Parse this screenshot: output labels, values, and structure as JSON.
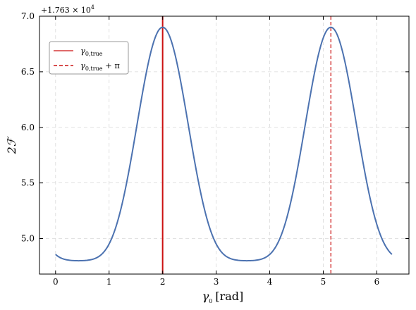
{
  "chart_data": {
    "type": "line",
    "offset_text": "+1.763 × 10",
    "offset_exp": "4",
    "xlabel_symbol": "γ",
    "xlabel_sub": "0",
    "xlabel_unit": "[rad]",
    "ylabel": "2ℱ",
    "xlim": [
      -0.3,
      6.6
    ],
    "ylim": [
      4.68,
      7.0
    ],
    "xticks": [
      0,
      1,
      2,
      3,
      4,
      5,
      6
    ],
    "yticks": [
      5.0,
      5.5,
      6.0,
      6.5,
      7.0
    ],
    "grid": true,
    "legend_position": "upper-left",
    "series": [
      {
        "model": {
          "baseline": 4.8,
          "peak_amplitude": 2.1,
          "period": 3.14159,
          "phase": 2.0,
          "ripple_amplitude": 0.035
        },
        "x_range": [
          0.0,
          6.283
        ],
        "color": "#4c72b0"
      }
    ],
    "vertical_lines": [
      {
        "x": 2.0,
        "label_symbol": "γ",
        "label_sub": "0,true",
        "label_suffix": "",
        "style": "solid",
        "color": "#cc1111"
      },
      {
        "x": 5.1416,
        "label_symbol": "γ",
        "label_sub": "0,true",
        "label_suffix": " + π",
        "style": "dashed",
        "color": "#cc1111"
      }
    ]
  }
}
